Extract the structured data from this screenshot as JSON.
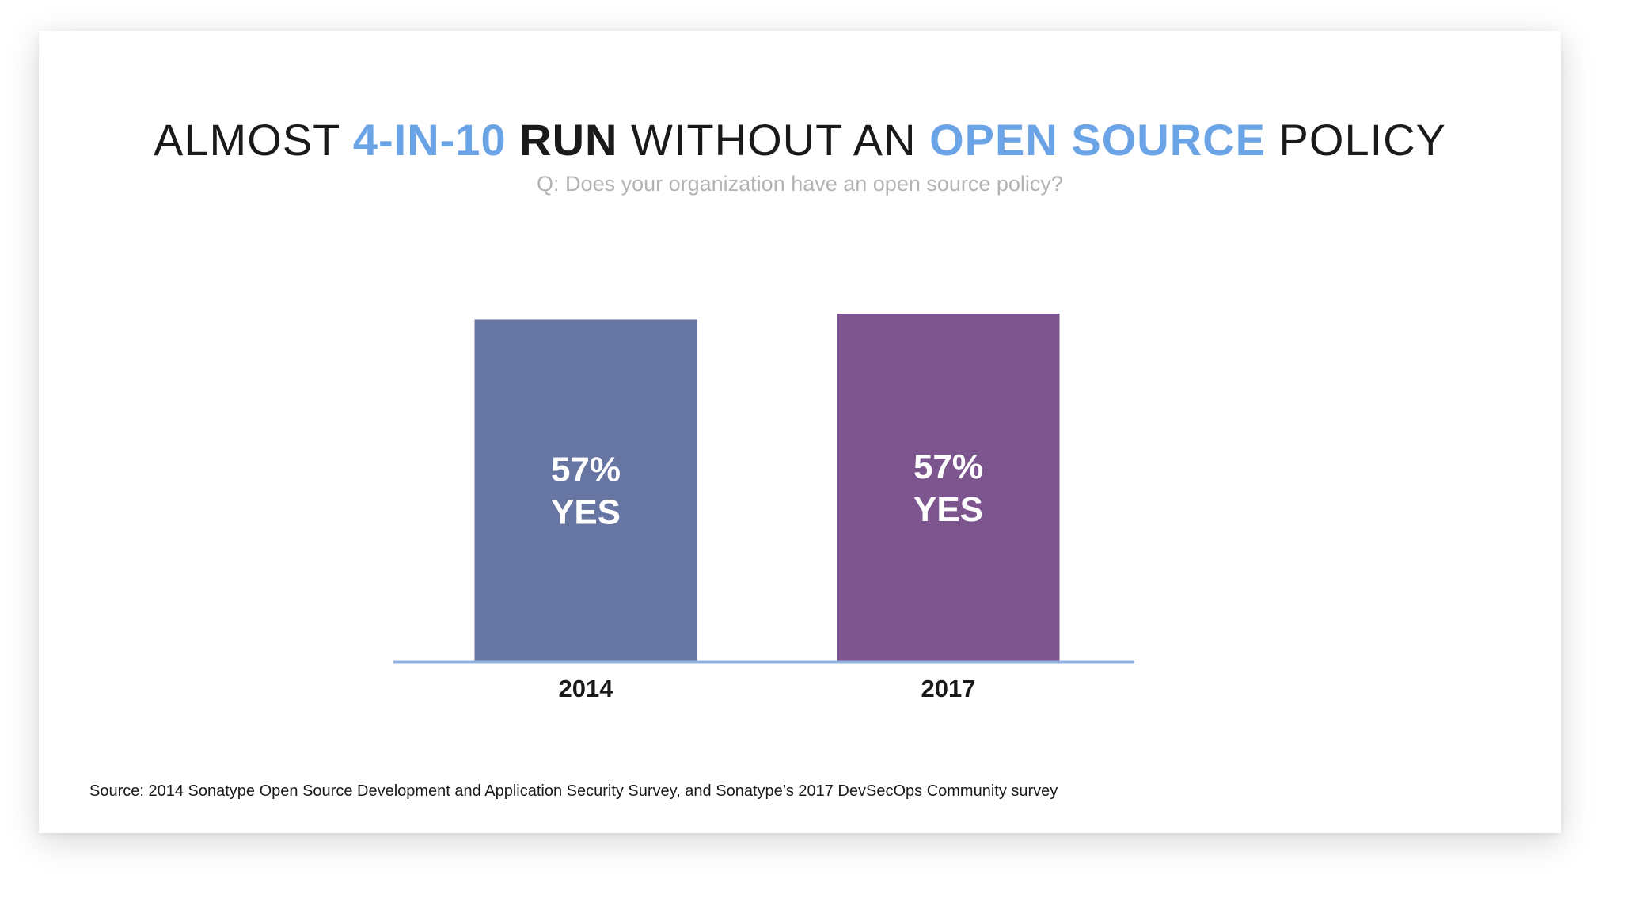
{
  "title": {
    "part1": "ALMOST ",
    "part2": "4-IN-10",
    "part3": " RUN",
    "part4": " WITHOUT AN ",
    "part5": "OPEN SOURCE",
    "part6": " POLICY"
  },
  "subtitle": "Q: Does your organization have an open source policy?",
  "source": "Source: 2014 Sonatype Open Source Development and Application Security Survey, and Sonatype’s 2017 DevSecOps Community survey",
  "colors": {
    "title_accent": "#6aa3e6",
    "subtitle": "#b3b3b3",
    "bar_2014": "#6775a3",
    "bar_2017": "#7d558e",
    "axis": "#8fb2e0",
    "bar_label": "#ffffff",
    "tick": "#1a1a1a"
  },
  "chart_data": {
    "type": "bar",
    "title": "ALMOST 4-IN-10 RUN WITHOUT AN OPEN SOURCE POLICY",
    "subtitle": "Q: Does your organization have an open source policy?",
    "categories": [
      "2014",
      "2017"
    ],
    "values": [
      57,
      57
    ],
    "value_labels": [
      "57%",
      "57%"
    ],
    "value_sublabels": [
      "YES",
      "YES"
    ],
    "xlabel": "",
    "ylabel": "",
    "ylim": [
      0,
      100
    ],
    "grid": false
  }
}
